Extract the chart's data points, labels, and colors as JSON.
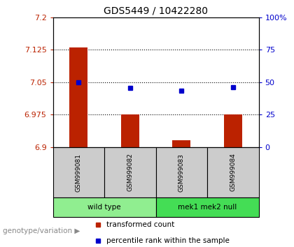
{
  "title": "GDS5449 / 10422280",
  "samples": [
    "GSM999081",
    "GSM999082",
    "GSM999083",
    "GSM999084"
  ],
  "groups": [
    {
      "label": "wild type",
      "indices": [
        0,
        1
      ],
      "color": "#90EE90"
    },
    {
      "label": "mek1 mek2 null",
      "indices": [
        2,
        3
      ],
      "color": "#44DD55"
    }
  ],
  "bar_values": [
    7.13,
    6.975,
    6.915,
    6.975
  ],
  "dot_values": [
    7.05,
    7.036,
    7.03,
    7.038
  ],
  "ylim_left": [
    6.9,
    7.2
  ],
  "ylim_right": [
    0,
    100
  ],
  "yticks_left": [
    6.9,
    6.975,
    7.05,
    7.125,
    7.2
  ],
  "ytick_labels_left": [
    "6.9",
    "6.975",
    "7.05",
    "7.125",
    "7.2"
  ],
  "yticks_right": [
    0,
    25,
    50,
    75,
    100
  ],
  "ytick_labels_right": [
    "0",
    "25",
    "50",
    "75",
    "100%"
  ],
  "hlines": [
    7.125,
    7.05,
    6.975
  ],
  "bar_color": "#BB2200",
  "dot_color": "#0000CC",
  "bar_bottom": 6.9,
  "group_label": "genotype/variation",
  "legend_bar": "transformed count",
  "legend_dot": "percentile rank within the sample",
  "bg_color": "#FFFFFF",
  "plot_bg": "#FFFFFF",
  "sample_cell_color": "#CCCCCC",
  "title_fontsize": 10,
  "tick_fontsize": 8,
  "bar_width": 0.35
}
